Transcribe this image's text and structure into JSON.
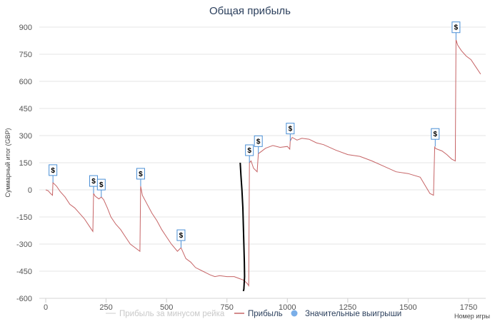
{
  "chart_data": {
    "type": "line",
    "title": "Общая прибыль",
    "xlabel": "Номер игры",
    "ylabel": "Суммарный итог (GBP)",
    "xlim": [
      0,
      1820
    ],
    "ylim": [
      -600,
      950
    ],
    "x_ticks": [
      0,
      250,
      500,
      750,
      1000,
      1250,
      1500,
      1750
    ],
    "y_ticks": [
      -600,
      -450,
      -300,
      -150,
      0,
      150,
      300,
      450,
      600,
      750,
      900
    ],
    "grid": "horizontal",
    "legend_position": "bottom",
    "colors": {
      "profit": "#c66466",
      "rake": "#d9d9d9",
      "wins": "#7aaee8",
      "marker": "#000000",
      "flag_border": "#4a8fd6",
      "title": "#2b3f5c"
    },
    "series": [
      {
        "name": "Прибыль за минусом рейка",
        "hidden": true,
        "x": [],
        "y": []
      },
      {
        "name": "Прибыль",
        "x": [
          0,
          10,
          20,
          28,
          30,
          45,
          60,
          80,
          100,
          120,
          140,
          160,
          180,
          195,
          198,
          205,
          220,
          230,
          240,
          255,
          270,
          290,
          310,
          330,
          350,
          370,
          390,
          393,
          400,
          420,
          440,
          460,
          480,
          500,
          520,
          545,
          560,
          580,
          600,
          620,
          650,
          680,
          700,
          720,
          750,
          780,
          800,
          820,
          835,
          840,
          843,
          850,
          860,
          875,
          880,
          890,
          910,
          940,
          970,
          1000,
          1010,
          1012,
          1020,
          1040,
          1060,
          1090,
          1120,
          1150,
          1200,
          1250,
          1300,
          1350,
          1400,
          1450,
          1500,
          1550,
          1590,
          1605,
          1610,
          1612,
          1620,
          1640,
          1660,
          1680,
          1695,
          1698,
          1705,
          1720,
          1740,
          1760,
          1780,
          1800
        ],
        "y": [
          0,
          -5,
          -20,
          -30,
          40,
          20,
          -10,
          -40,
          -80,
          -100,
          -130,
          -160,
          -200,
          -230,
          -20,
          -35,
          -50,
          -40,
          -55,
          -100,
          -150,
          -190,
          -220,
          -260,
          -300,
          -320,
          -340,
          20,
          -30,
          -80,
          -130,
          -170,
          -220,
          -260,
          -300,
          -340,
          -320,
          -380,
          -400,
          -430,
          -450,
          -470,
          -480,
          -475,
          -480,
          -480,
          -490,
          -500,
          -520,
          -530,
          150,
          160,
          120,
          100,
          200,
          210,
          230,
          245,
          235,
          240,
          225,
          270,
          290,
          275,
          285,
          280,
          260,
          250,
          220,
          195,
          185,
          160,
          130,
          100,
          90,
          70,
          -20,
          -30,
          240,
          230,
          225,
          215,
          195,
          170,
          160,
          830,
          800,
          770,
          740,
          720,
          680,
          640
        ]
      }
    ],
    "significant_wins": [
      {
        "x": 30,
        "y": 40,
        "label": "$"
      },
      {
        "x": 198,
        "y": -20,
        "label": "$"
      },
      {
        "x": 230,
        "y": -40,
        "label": "$"
      },
      {
        "x": 393,
        "y": 20,
        "label": "$"
      },
      {
        "x": 560,
        "y": -320,
        "label": "$"
      },
      {
        "x": 843,
        "y": 150,
        "label": "$"
      },
      {
        "x": 880,
        "y": 200,
        "label": "$"
      },
      {
        "x": 1012,
        "y": 270,
        "label": "$"
      },
      {
        "x": 1612,
        "y": 240,
        "label": "$"
      },
      {
        "x": 1698,
        "y": 830,
        "label": "$"
      }
    ],
    "legend": [
      {
        "label": "Прибыль за минусом рейка",
        "color": "#c9c9c9",
        "symbol": "line"
      },
      {
        "label": "Прибыль",
        "color": "#2b3f5c",
        "symbol": "line"
      },
      {
        "label": "Значительные выигрыши",
        "color": "#2b3f5c",
        "symbol": "circle"
      }
    ],
    "drawn_marker": {
      "color": "#000000",
      "points": [
        [
          805,
          150
        ],
        [
          808,
          80
        ],
        [
          812,
          0
        ],
        [
          816,
          -100
        ],
        [
          818,
          -200
        ],
        [
          820,
          -300
        ],
        [
          822,
          -400
        ],
        [
          823,
          -480
        ],
        [
          820,
          -550
        ],
        [
          818,
          -560
        ]
      ]
    }
  }
}
